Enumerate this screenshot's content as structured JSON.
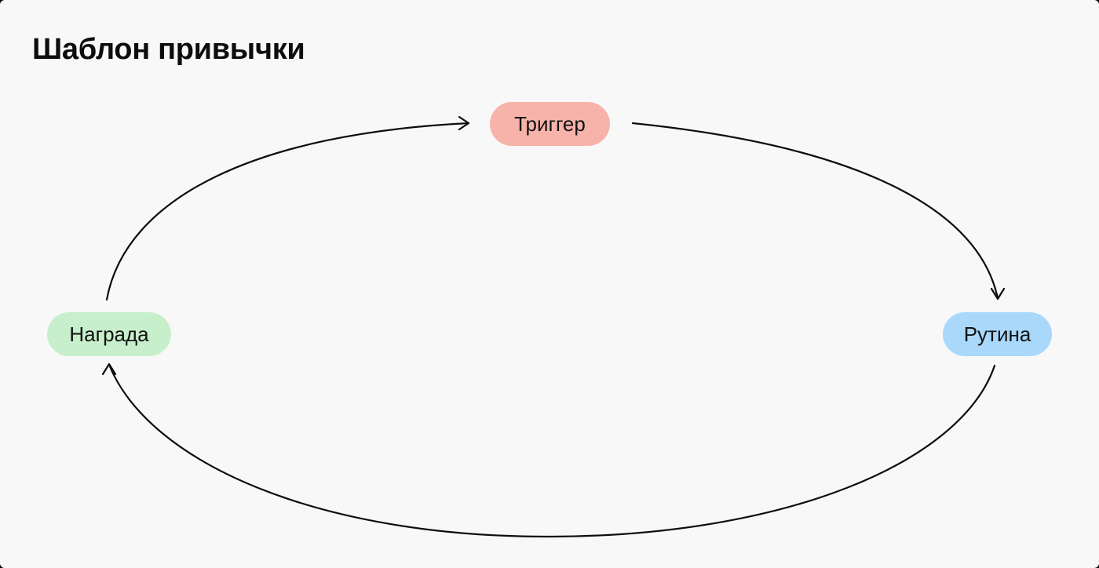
{
  "title": "Шаблон привычки",
  "nodes": {
    "trigger": {
      "label": "Триггер",
      "color": "#f7b3aa"
    },
    "routine": {
      "label": "Рутина",
      "color": "#a9d8fb"
    },
    "reward": {
      "label": "Награда",
      "color": "#c8efcb"
    }
  },
  "edges": [
    {
      "from": "Триггер",
      "to": "Рутина"
    },
    {
      "from": "Рутина",
      "to": "Награда"
    },
    {
      "from": "Награда",
      "to": "Триггер"
    }
  ],
  "colors": {
    "background": "#f8f8f8",
    "stroke": "#0d0d0d"
  }
}
